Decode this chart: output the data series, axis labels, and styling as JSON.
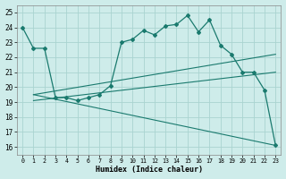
{
  "title": "",
  "xlabel": "Humidex (Indice chaleur)",
  "xlim": [
    -0.5,
    23.5
  ],
  "ylim": [
    15.5,
    25.5
  ],
  "yticks": [
    16,
    17,
    18,
    19,
    20,
    21,
    22,
    23,
    24,
    25
  ],
  "xticks": [
    0,
    1,
    2,
    3,
    4,
    5,
    6,
    7,
    8,
    9,
    10,
    11,
    12,
    13,
    14,
    15,
    16,
    17,
    18,
    19,
    20,
    21,
    22,
    23
  ],
  "background_color": "#ceecea",
  "grid_color": "#aad4d0",
  "line_color": "#1a7a6e",
  "main_line": {
    "x": [
      0,
      1,
      2,
      3,
      4,
      5,
      6,
      7,
      8,
      9,
      10,
      11,
      12,
      13,
      14,
      15,
      16,
      17,
      18,
      19,
      20,
      21,
      22,
      23
    ],
    "y": [
      24.0,
      22.6,
      22.6,
      19.3,
      19.3,
      19.1,
      19.3,
      19.5,
      20.1,
      23.0,
      23.2,
      23.8,
      23.5,
      24.1,
      24.2,
      24.8,
      23.7,
      24.5,
      22.8,
      22.2,
      21.0,
      21.0,
      19.8,
      16.1
    ]
  },
  "regression_lines": [
    {
      "x": [
        1,
        23
      ],
      "y": [
        19.5,
        22.2
      ]
    },
    {
      "x": [
        1,
        23
      ],
      "y": [
        19.1,
        21.0
      ]
    },
    {
      "x": [
        1,
        23
      ],
      "y": [
        19.5,
        16.1
      ]
    }
  ]
}
